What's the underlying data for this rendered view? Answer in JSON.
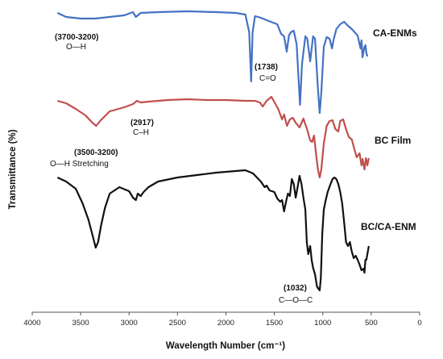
{
  "chart_data": {
    "type": "line",
    "xlabel": "Wavelength Number (cm⁻¹)",
    "ylabel": "Transmittance (%)",
    "xlim": [
      4000,
      0
    ],
    "x_ticks": [
      "4000",
      "3500",
      "3000",
      "2500",
      "2000",
      "1500",
      "1000",
      "500",
      "0"
    ],
    "y_ticks_shown": false,
    "grid": false,
    "series": [
      {
        "name": "CA-ENMs",
        "color": "#4472c4",
        "points": [
          [
            3740,
            16
          ],
          [
            3650,
            21
          ],
          [
            3500,
            23
          ],
          [
            3350,
            23
          ],
          [
            3200,
            21
          ],
          [
            3050,
            19
          ],
          [
            2960,
            15
          ],
          [
            2930,
            21
          ],
          [
            2880,
            16
          ],
          [
            2700,
            15
          ],
          [
            2400,
            14
          ],
          [
            2100,
            15
          ],
          [
            1900,
            16
          ],
          [
            1800,
            18
          ],
          [
            1760,
            40
          ],
          [
            1740,
            101
          ],
          [
            1725,
            40
          ],
          [
            1700,
            20
          ],
          [
            1640,
            22
          ],
          [
            1560,
            26
          ],
          [
            1470,
            30
          ],
          [
            1430,
            42
          ],
          [
            1400,
            45
          ],
          [
            1372,
            64
          ],
          [
            1350,
            44
          ],
          [
            1330,
            40
          ],
          [
            1300,
            38
          ],
          [
            1270,
            55
          ],
          [
            1235,
            130
          ],
          [
            1215,
            80
          ],
          [
            1180,
            45
          ],
          [
            1160,
            48
          ],
          [
            1130,
            76
          ],
          [
            1100,
            45
          ],
          [
            1080,
            48
          ],
          [
            1050,
            110
          ],
          [
            1032,
            140
          ],
          [
            1015,
            115
          ],
          [
            990,
            58
          ],
          [
            960,
            46
          ],
          [
            930,
            48
          ],
          [
            905,
            60
          ],
          [
            890,
            50
          ],
          [
            860,
            36
          ],
          [
            820,
            30
          ],
          [
            780,
            27
          ],
          [
            740,
            32
          ],
          [
            700,
            36
          ],
          [
            670,
            40
          ],
          [
            640,
            44
          ],
          [
            610,
            60
          ],
          [
            600,
            50
          ],
          [
            590,
            71
          ],
          [
            570,
            58
          ],
          [
            560,
            56
          ],
          [
            550,
            66
          ],
          [
            540,
            70
          ]
        ]
      },
      {
        "name": "BC Film",
        "color": "#c0504d",
        "points": [
          [
            3740,
            125
          ],
          [
            3650,
            128
          ],
          [
            3550,
            135
          ],
          [
            3450,
            143
          ],
          [
            3380,
            152
          ],
          [
            3340,
            156
          ],
          [
            3300,
            150
          ],
          [
            3200,
            138
          ],
          [
            3050,
            133
          ],
          [
            2960,
            129
          ],
          [
            2920,
            125
          ],
          [
            2880,
            127
          ],
          [
            2800,
            126
          ],
          [
            2600,
            124
          ],
          [
            2400,
            123
          ],
          [
            2200,
            124
          ],
          [
            2000,
            124
          ],
          [
            1800,
            125
          ],
          [
            1700,
            125
          ],
          [
            1650,
            127
          ],
          [
            1620,
            132
          ],
          [
            1580,
            125
          ],
          [
            1530,
            120
          ],
          [
            1460,
            135
          ],
          [
            1420,
            148
          ],
          [
            1400,
            142
          ],
          [
            1370,
            156
          ],
          [
            1340,
            148
          ],
          [
            1310,
            146
          ],
          [
            1280,
            152
          ],
          [
            1240,
            158
          ],
          [
            1200,
            147
          ],
          [
            1160,
            161
          ],
          [
            1130,
            174
          ],
          [
            1110,
            176
          ],
          [
            1090,
            168
          ],
          [
            1070,
            190
          ],
          [
            1050,
            210
          ],
          [
            1032,
            220
          ],
          [
            1015,
            210
          ],
          [
            990,
            178
          ],
          [
            960,
            156
          ],
          [
            930,
            150
          ],
          [
            900,
            149
          ],
          [
            870,
            160
          ],
          [
            840,
            163
          ],
          [
            820,
            150
          ],
          [
            790,
            148
          ],
          [
            760,
            160
          ],
          [
            730,
            170
          ],
          [
            700,
            173
          ],
          [
            680,
            182
          ],
          [
            650,
            195
          ],
          [
            620,
            190
          ],
          [
            600,
            205
          ],
          [
            590,
            197
          ],
          [
            570,
            210
          ],
          [
            555,
            196
          ],
          [
            540,
            205
          ],
          [
            525,
            196
          ]
        ]
      },
      {
        "name": "BC/CA-ENM",
        "color": "#111111",
        "points": [
          [
            3740,
            220
          ],
          [
            3650,
            225
          ],
          [
            3550,
            234
          ],
          [
            3480,
            252
          ],
          [
            3420,
            272
          ],
          [
            3370,
            295
          ],
          [
            3345,
            307
          ],
          [
            3320,
            300
          ],
          [
            3290,
            280
          ],
          [
            3250,
            258
          ],
          [
            3200,
            240
          ],
          [
            3100,
            232
          ],
          [
            3000,
            237
          ],
          [
            2960,
            245
          ],
          [
            2930,
            248
          ],
          [
            2910,
            240
          ],
          [
            2880,
            243
          ],
          [
            2850,
            238
          ],
          [
            2800,
            232
          ],
          [
            2700,
            225
          ],
          [
            2500,
            220
          ],
          [
            2300,
            217
          ],
          [
            2100,
            214
          ],
          [
            1900,
            212
          ],
          [
            1800,
            211
          ],
          [
            1720,
            215
          ],
          [
            1680,
            220
          ],
          [
            1640,
            225
          ],
          [
            1600,
            232
          ],
          [
            1580,
            230
          ],
          [
            1550,
            236
          ],
          [
            1500,
            238
          ],
          [
            1470,
            246
          ],
          [
            1440,
            250
          ],
          [
            1420,
            248
          ],
          [
            1400,
            262
          ],
          [
            1380,
            250
          ],
          [
            1360,
            240
          ],
          [
            1340,
            243
          ],
          [
            1320,
            222
          ],
          [
            1300,
            228
          ],
          [
            1280,
            245
          ],
          [
            1260,
            232
          ],
          [
            1240,
            218
          ],
          [
            1220,
            228
          ],
          [
            1200,
            245
          ],
          [
            1180,
            260
          ],
          [
            1165,
            300
          ],
          [
            1150,
            315
          ],
          [
            1130,
            305
          ],
          [
            1115,
            322
          ],
          [
            1100,
            332
          ],
          [
            1080,
            340
          ],
          [
            1060,
            355
          ],
          [
            1045,
            358
          ],
          [
            1032,
            360
          ],
          [
            1020,
            345
          ],
          [
            1005,
            290
          ],
          [
            990,
            260
          ],
          [
            970,
            248
          ],
          [
            950,
            238
          ],
          [
            920,
            228
          ],
          [
            900,
            222
          ],
          [
            880,
            220
          ],
          [
            860,
            222
          ],
          [
            840,
            228
          ],
          [
            820,
            238
          ],
          [
            800,
            252
          ],
          [
            780,
            275
          ],
          [
            760,
            300
          ],
          [
            740,
            305
          ],
          [
            720,
            300
          ],
          [
            700,
            312
          ],
          [
            680,
            320
          ],
          [
            660,
            317
          ],
          [
            640,
            322
          ],
          [
            620,
            328
          ],
          [
            600,
            335
          ],
          [
            580,
            333
          ],
          [
            570,
            338
          ],
          [
            560,
            322
          ],
          [
            550,
            322
          ],
          [
            540,
            315
          ],
          [
            525,
            305
          ]
        ]
      }
    ],
    "annotations": [
      {
        "line1": "(3700-3200)",
        "line2": "O—H"
      },
      {
        "line1": "(1738)",
        "line2": "C=O"
      },
      {
        "line1": "(2917)",
        "line2": "C–H"
      },
      {
        "line1": "(3500-3200)",
        "line2": "O—H  Stretching"
      },
      {
        "line1": "(1032)",
        "line2": "C—O—C"
      }
    ]
  }
}
